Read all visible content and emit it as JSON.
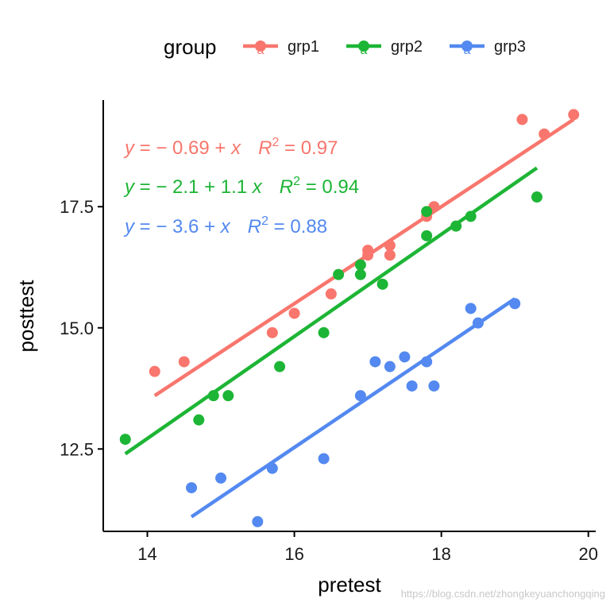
{
  "chart_data": {
    "type": "scatter",
    "xlabel": "pretest",
    "ylabel": "posttest",
    "xlim": [
      13.4,
      20.1
    ],
    "ylim": [
      10.8,
      19.7
    ],
    "x_ticks": [
      14,
      16,
      18,
      20
    ],
    "x_tick_labels": [
      "14",
      "16",
      "18",
      "20"
    ],
    "y_ticks": [
      12.5,
      15.0,
      17.5
    ],
    "y_tick_labels": [
      "12.5",
      "15.0",
      "17.5"
    ],
    "grid": false,
    "legend": {
      "title": "group",
      "position": "top",
      "key_glyph": "a"
    },
    "series": [
      {
        "name": "grp1",
        "color": "#F8766D",
        "points": [
          {
            "x": 14.1,
            "y": 14.1
          },
          {
            "x": 14.5,
            "y": 14.3
          },
          {
            "x": 15.7,
            "y": 14.9
          },
          {
            "x": 16.0,
            "y": 15.3
          },
          {
            "x": 16.5,
            "y": 15.7
          },
          {
            "x": 17.0,
            "y": 16.5
          },
          {
            "x": 17.0,
            "y": 16.6
          },
          {
            "x": 17.3,
            "y": 16.5
          },
          {
            "x": 17.3,
            "y": 16.7
          },
          {
            "x": 17.8,
            "y": 17.3
          },
          {
            "x": 17.9,
            "y": 17.5
          },
          {
            "x": 19.1,
            "y": 19.3
          },
          {
            "x": 19.4,
            "y": 19.0
          },
          {
            "x": 19.8,
            "y": 19.4
          }
        ],
        "fit": {
          "x": [
            14.1,
            19.8
          ],
          "y": [
            13.6,
            19.3
          ]
        },
        "equation": {
          "lhs": "y",
          "rhs": " = − 0.69 +  x",
          "r2_symbol": "R",
          "r2_sup": "2",
          "r2_value": " = 0.97"
        }
      },
      {
        "name": "grp2",
        "color": "#1DB535",
        "points": [
          {
            "x": 13.7,
            "y": 12.7
          },
          {
            "x": 14.7,
            "y": 13.1
          },
          {
            "x": 14.9,
            "y": 13.6
          },
          {
            "x": 15.1,
            "y": 13.6
          },
          {
            "x": 15.8,
            "y": 14.2
          },
          {
            "x": 16.4,
            "y": 14.9
          },
          {
            "x": 16.6,
            "y": 16.1
          },
          {
            "x": 16.9,
            "y": 16.1
          },
          {
            "x": 16.9,
            "y": 16.3
          },
          {
            "x": 17.2,
            "y": 15.9
          },
          {
            "x": 17.8,
            "y": 16.9
          },
          {
            "x": 17.8,
            "y": 17.4
          },
          {
            "x": 18.2,
            "y": 17.1
          },
          {
            "x": 18.4,
            "y": 17.3
          },
          {
            "x": 19.3,
            "y": 17.7
          }
        ],
        "fit": {
          "x": [
            13.7,
            19.3
          ],
          "y": [
            12.4,
            18.3
          ]
        },
        "equation": {
          "lhs": "y",
          "rhs": " = − 2.1 + 1.1 x",
          "r2_symbol": "R",
          "r2_sup": "2",
          "r2_value": " = 0.94"
        }
      },
      {
        "name": "grp3",
        "color": "#5389F0",
        "points": [
          {
            "x": 14.6,
            "y": 11.7
          },
          {
            "x": 15.0,
            "y": 11.9
          },
          {
            "x": 15.5,
            "y": 11.0
          },
          {
            "x": 15.7,
            "y": 12.1
          },
          {
            "x": 16.4,
            "y": 12.3
          },
          {
            "x": 16.9,
            "y": 13.6
          },
          {
            "x": 17.1,
            "y": 14.3
          },
          {
            "x": 17.3,
            "y": 14.2
          },
          {
            "x": 17.5,
            "y": 14.4
          },
          {
            "x": 17.6,
            "y": 13.8
          },
          {
            "x": 17.8,
            "y": 14.3
          },
          {
            "x": 17.9,
            "y": 13.8
          },
          {
            "x": 18.4,
            "y": 15.4
          },
          {
            "x": 18.5,
            "y": 15.1
          },
          {
            "x": 19.0,
            "y": 15.5
          }
        ],
        "fit": {
          "x": [
            14.6,
            19.0
          ],
          "y": [
            11.1,
            15.6
          ]
        },
        "equation": {
          "lhs": "y",
          "rhs": " = − 3.6 +  x",
          "r2_symbol": "R",
          "r2_sup": "2",
          "r2_value": " = 0.88"
        }
      }
    ]
  },
  "watermark": "https://blog.csdn.net/zhongkeyuanchongqing"
}
